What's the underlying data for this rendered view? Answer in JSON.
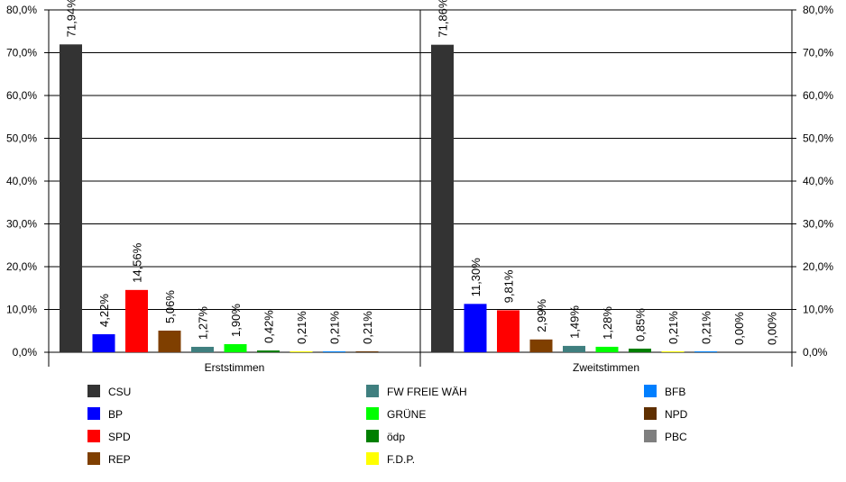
{
  "chart_data": {
    "type": "bar",
    "ylim": [
      0,
      80
    ],
    "y_ticks": [
      "0,0%",
      "10,0%",
      "20,0%",
      "30,0%",
      "40,0%",
      "50,0%",
      "60,0%",
      "70,0%",
      "80,0%"
    ],
    "grid": true,
    "legend_position": "bottom",
    "groups": [
      {
        "name": "Erststimmen",
        "bars": [
          {
            "party": "CSU",
            "value": 71.94,
            "label": "71,94%"
          },
          {
            "party": "BP",
            "value": 4.22,
            "label": "4,22%"
          },
          {
            "party": "SPD",
            "value": 14.56,
            "label": "14,56%"
          },
          {
            "party": "REP",
            "value": 5.06,
            "label": "5,06%"
          },
          {
            "party": "FW FREIE WÄH",
            "value": 1.27,
            "label": "1,27%"
          },
          {
            "party": "GRÜNE",
            "value": 1.9,
            "label": "1,90%"
          },
          {
            "party": "ödp",
            "value": 0.42,
            "label": "0,42%"
          },
          {
            "party": "F.D.P.",
            "value": 0.21,
            "label": "0,21%"
          },
          {
            "party": "BFB",
            "value": 0.21,
            "label": "0,21%"
          },
          {
            "party": "NPD",
            "value": 0.21,
            "label": "0,21%"
          }
        ]
      },
      {
        "name": "Zweitstimmen",
        "bars": [
          {
            "party": "CSU",
            "value": 71.86,
            "label": "71,86%"
          },
          {
            "party": "BP",
            "value": 11.3,
            "label": "11,30%"
          },
          {
            "party": "SPD",
            "value": 9.81,
            "label": "9,81%"
          },
          {
            "party": "REP",
            "value": 2.99,
            "label": "2,99%"
          },
          {
            "party": "FW FREIE WÄH",
            "value": 1.49,
            "label": "1,49%"
          },
          {
            "party": "GRÜNE",
            "value": 1.28,
            "label": "1,28%"
          },
          {
            "party": "ödp",
            "value": 0.85,
            "label": "0,85%"
          },
          {
            "party": "F.D.P.",
            "value": 0.21,
            "label": "0,21%"
          },
          {
            "party": "BFB",
            "value": 0.21,
            "label": "0,21%"
          },
          {
            "party": "NPD",
            "value": 0.0,
            "label": "0,00%"
          },
          {
            "party": "PBC",
            "value": 0.0,
            "label": "0,00%"
          }
        ]
      }
    ],
    "legend": [
      {
        "name": "CSU",
        "color": "#333333"
      },
      {
        "name": "BP",
        "color": "#0000ff"
      },
      {
        "name": "SPD",
        "color": "#ff0000"
      },
      {
        "name": "REP",
        "color": "#7f3f00"
      },
      {
        "name": "FW FREIE WÄH",
        "color": "#3f7f7f"
      },
      {
        "name": "GRÜNE",
        "color": "#00ff00"
      },
      {
        "name": "ödp",
        "color": "#007f00"
      },
      {
        "name": "F.D.P.",
        "color": "#ffff00"
      },
      {
        "name": "BFB",
        "color": "#007fff"
      },
      {
        "name": "NPD",
        "color": "#5f2f00"
      },
      {
        "name": "PBC",
        "color": "#7f7f7f"
      }
    ]
  }
}
